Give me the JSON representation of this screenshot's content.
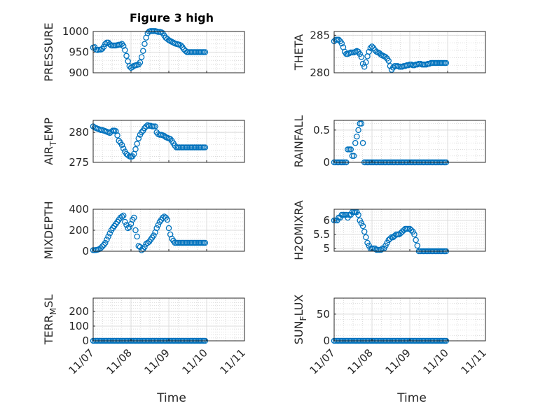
{
  "title": "Figure 3 high",
  "x_axis_label": "Time",
  "x_tick_labels": [
    "11/07",
    "11/08",
    "11/09",
    "11/10",
    "11/11"
  ],
  "marker_color": "#0072BD",
  "chart_data": [
    {
      "type": "scatter",
      "ylabel": "PRESSURE",
      "ylim": [
        900,
        1000
      ],
      "yticks": [
        900,
        950,
        1000
      ],
      "xlim": [
        0,
        4
      ],
      "x": [
        0.0,
        0.04,
        0.08,
        0.12,
        0.16,
        0.2,
        0.24,
        0.28,
        0.32,
        0.36,
        0.4,
        0.44,
        0.48,
        0.52,
        0.56,
        0.6,
        0.64,
        0.68,
        0.72,
        0.76,
        0.8,
        0.84,
        0.88,
        0.92,
        0.96,
        1.0,
        1.04,
        1.08,
        1.12,
        1.16,
        1.2,
        1.24,
        1.28,
        1.32,
        1.36,
        1.4,
        1.44,
        1.48,
        1.52,
        1.56,
        1.6,
        1.64,
        1.68,
        1.72,
        1.76,
        1.8,
        1.84,
        1.88,
        1.92,
        1.96,
        2.0,
        2.04,
        2.08,
        2.12,
        2.16,
        2.2,
        2.24,
        2.28,
        2.32,
        2.36,
        2.4,
        2.44,
        2.48,
        2.52,
        2.56,
        2.6,
        2.64,
        2.68,
        2.72,
        2.76,
        2.8,
        2.84,
        2.88,
        2.92,
        2.96
      ],
      "y": [
        961,
        962,
        956,
        955,
        956,
        956,
        958,
        963,
        970,
        973,
        973,
        969,
        966,
        966,
        966,
        966,
        967,
        968,
        968,
        970,
        965,
        955,
        941,
        928,
        916,
        912,
        914,
        917,
        918,
        919,
        920,
        925,
        938,
        953,
        970,
        985,
        996,
        1000,
        1001,
        1001,
        1001,
        1001,
        1000,
        999,
        999,
        998,
        996,
        990,
        985,
        982,
        979,
        977,
        975,
        973,
        971,
        970,
        969,
        968,
        966,
        962,
        957,
        953,
        950,
        950,
        950,
        950,
        950,
        950,
        950,
        950,
        950,
        950,
        950,
        950,
        950
      ]
    },
    {
      "type": "scatter",
      "ylabel": "THETA",
      "ylim": [
        280,
        285.5
      ],
      "yticks": [
        280,
        285
      ],
      "xlim": [
        0,
        4
      ],
      "x": [
        0.0,
        0.04,
        0.08,
        0.12,
        0.16,
        0.2,
        0.24,
        0.28,
        0.32,
        0.36,
        0.4,
        0.44,
        0.48,
        0.52,
        0.56,
        0.6,
        0.64,
        0.68,
        0.72,
        0.76,
        0.8,
        0.84,
        0.88,
        0.92,
        0.96,
        1.0,
        1.04,
        1.08,
        1.12,
        1.16,
        1.2,
        1.24,
        1.28,
        1.32,
        1.36,
        1.4,
        1.44,
        1.48,
        1.52,
        1.56,
        1.6,
        1.64,
        1.68,
        1.72,
        1.76,
        1.8,
        1.84,
        1.88,
        1.92,
        1.96,
        2.0,
        2.04,
        2.08,
        2.12,
        2.16,
        2.2,
        2.24,
        2.28,
        2.32,
        2.36,
        2.4,
        2.44,
        2.48,
        2.52,
        2.56,
        2.6,
        2.64,
        2.68,
        2.72,
        2.76,
        2.8,
        2.84,
        2.88,
        2.92,
        2.96
      ],
      "y": [
        284.2,
        284.4,
        284.4,
        284.4,
        284.2,
        283.9,
        283.4,
        282.8,
        282.5,
        282.5,
        282.6,
        282.7,
        282.7,
        282.7,
        282.8,
        282.9,
        282.8,
        282.5,
        282.1,
        281.2,
        280.8,
        281.4,
        282.2,
        282.8,
        283.3,
        283.5,
        283.3,
        283.0,
        282.8,
        282.7,
        282.6,
        282.4,
        282.3,
        282.2,
        282.1,
        281.9,
        281.6,
        280.9,
        280.4,
        280.7,
        280.9,
        280.9,
        280.9,
        280.8,
        280.8,
        280.8,
        280.9,
        280.9,
        281.0,
        281.0,
        281.1,
        281.1,
        281.0,
        281.0,
        281.1,
        281.1,
        281.2,
        281.2,
        281.1,
        281.1,
        281.1,
        281.1,
        281.2,
        281.2,
        281.3,
        281.3,
        281.3,
        281.3,
        281.3,
        281.3,
        281.3,
        281.3,
        281.3,
        281.3,
        281.3
      ]
    },
    {
      "type": "scatter",
      "ylabel": "AIR_TEMP",
      "ylim": [
        275,
        282
      ],
      "yticks": [
        275,
        280
      ],
      "xlim": [
        0,
        4
      ],
      "x": [
        0.0,
        0.04,
        0.08,
        0.12,
        0.16,
        0.2,
        0.24,
        0.28,
        0.32,
        0.36,
        0.4,
        0.44,
        0.48,
        0.52,
        0.56,
        0.6,
        0.64,
        0.68,
        0.72,
        0.76,
        0.8,
        0.84,
        0.88,
        0.92,
        0.96,
        1.0,
        1.04,
        1.08,
        1.12,
        1.16,
        1.2,
        1.24,
        1.28,
        1.32,
        1.36,
        1.4,
        1.44,
        1.48,
        1.52,
        1.56,
        1.6,
        1.64,
        1.68,
        1.72,
        1.76,
        1.8,
        1.84,
        1.88,
        1.92,
        1.96,
        2.0,
        2.04,
        2.08,
        2.12,
        2.16,
        2.2,
        2.24,
        2.28,
        2.32,
        2.36,
        2.4,
        2.44,
        2.48,
        2.52,
        2.56,
        2.6,
        2.64,
        2.68,
        2.72,
        2.76,
        2.8,
        2.84,
        2.88,
        2.92,
        2.96
      ],
      "y": [
        281.0,
        280.8,
        280.7,
        280.6,
        280.5,
        280.4,
        280.4,
        280.3,
        280.2,
        280.1,
        280.0,
        279.9,
        280.1,
        280.3,
        280.3,
        280.2,
        279.5,
        278.6,
        278.3,
        277.9,
        277.3,
        276.8,
        276.4,
        276.2,
        276.0,
        275.9,
        276.0,
        276.4,
        277.2,
        278.1,
        279.0,
        279.6,
        280.0,
        280.3,
        280.7,
        281.0,
        281.2,
        281.1,
        281.1,
        281.0,
        281.0,
        281.0,
        280.0,
        279.7,
        279.6,
        279.6,
        279.5,
        279.4,
        279.2,
        279.1,
        279.0,
        278.9,
        278.6,
        278.2,
        277.8,
        277.5,
        277.5,
        277.5,
        277.5,
        277.5,
        277.5,
        277.5,
        277.5,
        277.5,
        277.5,
        277.5,
        277.5,
        277.5,
        277.5,
        277.5,
        277.5,
        277.5,
        277.5,
        277.5,
        277.5
      ]
    },
    {
      "type": "scatter",
      "ylabel": "RAINFALL",
      "ylim": [
        0,
        0.65
      ],
      "yticks": [
        0,
        0.5
      ],
      "xlim": [
        0,
        4
      ],
      "x": [
        0.0,
        0.04,
        0.08,
        0.12,
        0.16,
        0.2,
        0.24,
        0.28,
        0.32,
        0.36,
        0.4,
        0.44,
        0.48,
        0.52,
        0.56,
        0.6,
        0.64,
        0.68,
        0.72,
        0.76,
        0.8,
        0.84,
        0.88,
        0.92,
        0.96,
        1.0,
        1.04,
        1.08,
        1.12,
        1.16,
        1.2,
        1.24,
        1.28,
        1.32,
        1.36,
        1.4,
        1.44,
        1.48,
        1.52,
        1.56,
        1.6,
        1.64,
        1.68,
        1.72,
        1.76,
        1.8,
        1.84,
        1.88,
        1.92,
        1.96,
        2.0,
        2.04,
        2.08,
        2.12,
        2.16,
        2.2,
        2.24,
        2.28,
        2.32,
        2.36,
        2.4,
        2.44,
        2.48,
        2.52,
        2.56,
        2.6,
        2.64,
        2.68,
        2.72,
        2.76,
        2.8,
        2.84,
        2.88,
        2.92,
        2.96
      ],
      "y": [
        0,
        0,
        0,
        0,
        0,
        0,
        0,
        0,
        0,
        0.2,
        0.2,
        0.2,
        0.1,
        0.1,
        0.3,
        0.4,
        0.5,
        0.6,
        0.6,
        0.3,
        0,
        0,
        0,
        0,
        0,
        0,
        0,
        0,
        0,
        0,
        0,
        0,
        0,
        0,
        0,
        0,
        0,
        0,
        0,
        0,
        0,
        0,
        0,
        0,
        0,
        0,
        0,
        0,
        0,
        0,
        0,
        0,
        0,
        0,
        0,
        0,
        0,
        0,
        0,
        0,
        0,
        0,
        0,
        0,
        0,
        0,
        0,
        0,
        0,
        0,
        0,
        0,
        0,
        0,
        0
      ]
    },
    {
      "type": "scatter",
      "ylabel": "MIXDEPTH",
      "ylim": [
        0,
        400
      ],
      "yticks": [
        0,
        200,
        400
      ],
      "xlim": [
        0,
        4
      ],
      "x": [
        0.0,
        0.04,
        0.08,
        0.12,
        0.16,
        0.2,
        0.24,
        0.28,
        0.32,
        0.36,
        0.4,
        0.44,
        0.48,
        0.52,
        0.56,
        0.6,
        0.64,
        0.68,
        0.72,
        0.76,
        0.8,
        0.84,
        0.88,
        0.92,
        0.96,
        1.0,
        1.04,
        1.08,
        1.12,
        1.16,
        1.2,
        1.24,
        1.28,
        1.32,
        1.36,
        1.4,
        1.44,
        1.48,
        1.52,
        1.56,
        1.6,
        1.64,
        1.68,
        1.72,
        1.76,
        1.8,
        1.84,
        1.88,
        1.92,
        1.96,
        2.0,
        2.04,
        2.08,
        2.12,
        2.16,
        2.2,
        2.24,
        2.28,
        2.32,
        2.36,
        2.4,
        2.44,
        2.48,
        2.52,
        2.56,
        2.6,
        2.64,
        2.68,
        2.72,
        2.76,
        2.8,
        2.84,
        2.88,
        2.92,
        2.96
      ],
      "y": [
        10,
        10,
        12,
        15,
        20,
        30,
        45,
        60,
        80,
        110,
        140,
        170,
        200,
        220,
        240,
        260,
        280,
        300,
        320,
        330,
        340,
        280,
        250,
        220,
        230,
        260,
        300,
        320,
        200,
        140,
        50,
        40,
        10,
        20,
        40,
        70,
        80,
        90,
        110,
        130,
        150,
        180,
        220,
        250,
        280,
        300,
        320,
        330,
        320,
        300,
        220,
        160,
        120,
        100,
        80,
        80,
        80,
        80,
        80,
        80,
        80,
        80,
        80,
        80,
        80,
        80,
        80,
        80,
        80,
        80,
        80,
        80,
        80,
        80,
        80
      ]
    },
    {
      "type": "scatter",
      "ylabel": "H2OMIXRA",
      "ylim": [
        4.9,
        6.4
      ],
      "yticks": [
        5,
        5.5,
        6
      ],
      "xlim": [
        0,
        4
      ],
      "x": [
        0.0,
        0.04,
        0.08,
        0.12,
        0.16,
        0.2,
        0.24,
        0.28,
        0.32,
        0.36,
        0.4,
        0.44,
        0.48,
        0.52,
        0.56,
        0.6,
        0.64,
        0.68,
        0.72,
        0.76,
        0.8,
        0.84,
        0.88,
        0.92,
        0.96,
        1.0,
        1.04,
        1.08,
        1.12,
        1.16,
        1.2,
        1.24,
        1.28,
        1.32,
        1.36,
        1.4,
        1.44,
        1.48,
        1.52,
        1.56,
        1.6,
        1.64,
        1.68,
        1.72,
        1.76,
        1.8,
        1.84,
        1.88,
        1.92,
        1.96,
        2.0,
        2.04,
        2.08,
        2.12,
        2.16,
        2.2,
        2.24,
        2.28,
        2.32,
        2.36,
        2.4,
        2.44,
        2.48,
        2.52,
        2.56,
        2.6,
        2.64,
        2.68,
        2.72,
        2.76,
        2.8,
        2.84,
        2.88,
        2.92,
        2.96
      ],
      "y": [
        6.0,
        6.0,
        6.0,
        6.1,
        6.1,
        6.2,
        6.2,
        6.2,
        6.2,
        6.1,
        6.2,
        6.2,
        6.3,
        6.3,
        6.3,
        6.3,
        6.2,
        6.0,
        5.9,
        5.8,
        5.6,
        5.4,
        5.2,
        5.1,
        5.0,
        5.0,
        5.0,
        5.0,
        4.95,
        4.95,
        4.95,
        4.95,
        5.0,
        5.0,
        5.1,
        5.2,
        5.3,
        5.35,
        5.4,
        5.4,
        5.45,
        5.5,
        5.5,
        5.5,
        5.55,
        5.6,
        5.65,
        5.7,
        5.7,
        5.7,
        5.7,
        5.65,
        5.6,
        5.5,
        5.3,
        5.1,
        4.9,
        4.9,
        4.9,
        4.9,
        4.9,
        4.9,
        4.9,
        4.9,
        4.9,
        4.9,
        4.9,
        4.9,
        4.9,
        4.9,
        4.9,
        4.9,
        4.9,
        4.9,
        4.9
      ]
    },
    {
      "type": "scatter",
      "ylabel": "TERR_MSL",
      "ylim": [
        0,
        290
      ],
      "yticks": [
        0,
        100,
        200
      ],
      "xlim": [
        0,
        4
      ],
      "x": [
        0.0,
        0.04,
        0.08,
        0.12,
        0.16,
        0.2,
        0.24,
        0.28,
        0.32,
        0.36,
        0.4,
        0.44,
        0.48,
        0.52,
        0.56,
        0.6,
        0.64,
        0.68,
        0.72,
        0.76,
        0.8,
        0.84,
        0.88,
        0.92,
        0.96,
        1.0,
        1.04,
        1.08,
        1.12,
        1.16,
        1.2,
        1.24,
        1.28,
        1.32,
        1.36,
        1.4,
        1.44,
        1.48,
        1.52,
        1.56,
        1.6,
        1.64,
        1.68,
        1.72,
        1.76,
        1.8,
        1.84,
        1.88,
        1.92,
        1.96,
        2.0,
        2.04,
        2.08,
        2.12,
        2.16,
        2.2,
        2.24,
        2.28,
        2.32,
        2.36,
        2.4,
        2.44,
        2.48,
        2.52,
        2.56,
        2.6,
        2.64,
        2.68,
        2.72,
        2.76,
        2.8,
        2.84,
        2.88,
        2.92,
        2.96
      ],
      "y": [
        0,
        0,
        0,
        0,
        0,
        0,
        0,
        0,
        0,
        0,
        0,
        0,
        0,
        0,
        0,
        0,
        0,
        0,
        0,
        0,
        0,
        0,
        0,
        0,
        0,
        0,
        0,
        0,
        0,
        0,
        0,
        0,
        0,
        0,
        0,
        0,
        0,
        0,
        0,
        0,
        0,
        0,
        0,
        0,
        0,
        0,
        0,
        0,
        0,
        0,
        0,
        0,
        0,
        0,
        0,
        0,
        0,
        0,
        0,
        0,
        0,
        0,
        0,
        0,
        0,
        0,
        0,
        0,
        0,
        0,
        0,
        0,
        0,
        0,
        0
      ]
    },
    {
      "type": "scatter",
      "ylabel": "SUN_FLUX",
      "ylim": [
        0,
        80
      ],
      "yticks": [
        0,
        50
      ],
      "xlim": [
        0,
        4
      ],
      "x": [
        0.0,
        0.04,
        0.08,
        0.12,
        0.16,
        0.2,
        0.24,
        0.28,
        0.32,
        0.36,
        0.4,
        0.44,
        0.48,
        0.52,
        0.56,
        0.6,
        0.64,
        0.68,
        0.72,
        0.76,
        0.8,
        0.84,
        0.88,
        0.92,
        0.96,
        1.0,
        1.04,
        1.08,
        1.12,
        1.16,
        1.2,
        1.24,
        1.28,
        1.32,
        1.36,
        1.4,
        1.44,
        1.48,
        1.52,
        1.56,
        1.6,
        1.64,
        1.68,
        1.72,
        1.76,
        1.8,
        1.84,
        1.88,
        1.92,
        1.96,
        2.0,
        2.04,
        2.08,
        2.12,
        2.16,
        2.2,
        2.24,
        2.28,
        2.32,
        2.36,
        2.4,
        2.44,
        2.48,
        2.52,
        2.56,
        2.6,
        2.64,
        2.68,
        2.72,
        2.76,
        2.8,
        2.84,
        2.88,
        2.92,
        2.96
      ],
      "y": [
        0,
        0,
        0,
        0,
        0,
        0,
        0,
        0,
        0,
        0,
        0,
        0,
        0,
        0,
        0,
        0,
        0,
        0,
        0,
        0,
        0,
        0,
        0,
        0,
        0,
        0,
        0,
        0,
        0,
        0,
        0,
        0,
        0,
        0,
        0,
        0,
        0,
        0,
        0,
        0,
        0,
        0,
        0,
        0,
        0,
        0,
        0,
        0,
        0,
        0,
        0,
        0,
        0,
        0,
        0,
        0,
        0,
        0,
        0,
        0,
        0,
        0,
        0,
        0,
        0,
        0,
        0,
        0,
        0,
        0,
        0,
        0,
        0,
        0,
        0
      ]
    }
  ]
}
